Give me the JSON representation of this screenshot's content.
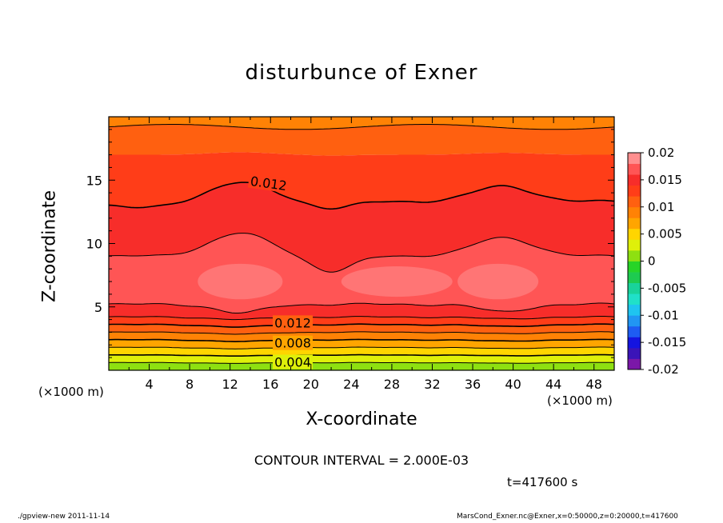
{
  "chart_data": {
    "type": "heatmap",
    "title": "disturbunce of Exner",
    "xlabel": "X-coordinate",
    "ylabel": "Z-coordinate",
    "x_unit_left": "(×1000 m)",
    "x_unit_right": "(×1000 m)",
    "xlim": [
      0,
      50
    ],
    "ylim": [
      0,
      20
    ],
    "x_ticks": [
      4,
      8,
      12,
      16,
      20,
      24,
      28,
      32,
      36,
      40,
      44,
      48
    ],
    "y_ticks": [
      5,
      10,
      15
    ],
    "colorbar": {
      "range": [
        -0.02,
        0.02
      ],
      "tick_labels": [
        "0.02",
        "0.015",
        "0.01",
        "0.005",
        "0",
        "-0.005",
        "-0.01",
        "-0.015",
        "-0.02"
      ],
      "tick_values": [
        0.02,
        0.015,
        0.01,
        0.005,
        0,
        -0.005,
        -0.01,
        -0.015,
        -0.02
      ],
      "colors": [
        "#7b17a8",
        "#3a14b8",
        "#1414e0",
        "#1e5cf2",
        "#2196f3",
        "#1fc4f0",
        "#20e0c8",
        "#19d39a",
        "#1ecb50",
        "#27d427",
        "#8ee011",
        "#dff00a",
        "#ffd500",
        "#ffa500",
        "#ff8205",
        "#ff6010",
        "#ff3d18",
        "#f72d2a",
        "#ff5555",
        "#ff8f8f"
      ]
    },
    "contour_levels": [
      0.004,
      0.006,
      0.008,
      0.01,
      0.012,
      0.014
    ],
    "contour_labels": [
      {
        "text": "0.012",
        "x": 15.8,
        "z": 14.7
      },
      {
        "text": "0.012",
        "x": 18.2,
        "z": 3.7
      },
      {
        "text": "0.008",
        "x": 18.2,
        "z": 2.1
      },
      {
        "text": "0.004",
        "x": 18.2,
        "z": 0.6
      }
    ],
    "contour_interval": "CONTOUR INTERVAL = 2.000E-03",
    "time": "t=417600 s"
  },
  "footer": {
    "left": "./gpview-new  2011-11-14",
    "right": "MarsCond_Exner.nc@Exner,x=0:50000,z=0:20000,t=417600"
  }
}
